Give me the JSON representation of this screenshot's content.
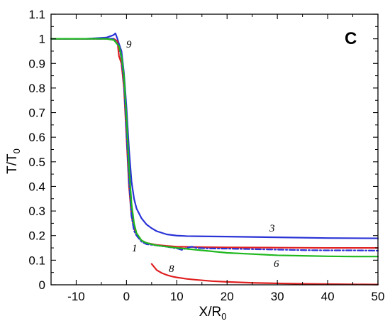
{
  "chart_data": {
    "type": "line",
    "panel_label": "C",
    "xlabel_main": "X/R",
    "xlabel_sub": "0",
    "ylabel_main": "T/T",
    "ylabel_sub": "0",
    "xlim": [
      -15,
      50
    ],
    "ylim": [
      0,
      1.1
    ],
    "xticks": [
      -10,
      0,
      10,
      20,
      30,
      40,
      50
    ],
    "yticks": [
      0,
      0.1,
      0.2,
      0.3,
      0.4,
      0.5,
      0.6,
      0.7,
      0.8,
      0.9,
      1,
      1.1
    ],
    "xtick_labels": [
      "-10",
      "0",
      "10",
      "20",
      "30",
      "40",
      "50"
    ],
    "ytick_labels": [
      "0",
      "0.1",
      "0.2",
      "0.3",
      "0.4",
      "0.5",
      "0.6",
      "0.7",
      "0.8",
      "0.9",
      "1",
      "1.1"
    ],
    "grid": false,
    "series": [
      {
        "name": "3",
        "color": "#2a33d6",
        "dash": "solid",
        "x": [
          -15,
          -8,
          -4,
          -2.6,
          -2.2,
          -1.8,
          -1.5,
          -1.0,
          -0.5,
          0,
          0.5,
          1,
          1.5,
          2,
          3,
          4,
          5,
          6,
          8,
          10,
          12,
          15,
          20,
          30,
          40,
          50
        ],
        "y": [
          1.0,
          1.0,
          1.005,
          1.015,
          1.022,
          1.0,
          0.98,
          0.95,
          0.86,
          0.72,
          0.55,
          0.42,
          0.35,
          0.31,
          0.27,
          0.245,
          0.23,
          0.218,
          0.205,
          0.2,
          0.198,
          0.197,
          0.196,
          0.193,
          0.19,
          0.189
        ]
      },
      {
        "name": "9",
        "color": "#e02020",
        "dash": "solid",
        "x": [
          -15,
          -8,
          -4,
          -2.5,
          -1.8,
          -1.6,
          -1.5,
          -1.0,
          -0.5,
          0,
          0.5,
          1,
          1.5,
          2,
          3,
          4,
          6,
          8,
          10,
          15,
          20,
          30,
          40,
          50
        ],
        "y": [
          1.0,
          1.0,
          1.0,
          1.0,
          0.99,
          0.95,
          0.93,
          0.9,
          0.8,
          0.6,
          0.4,
          0.28,
          0.23,
          0.205,
          0.18,
          0.17,
          0.162,
          0.158,
          0.155,
          0.153,
          0.152,
          0.151,
          0.15,
          0.15
        ]
      },
      {
        "name": "1",
        "color": "#2a33d6",
        "dash": "dashdot",
        "x": [
          -15,
          -8,
          -4,
          -2.5,
          -1.5,
          -1.0,
          -0.5,
          0,
          0.5,
          1,
          1.5,
          2,
          3,
          4,
          6,
          8,
          10,
          11,
          12,
          13,
          14,
          16,
          20,
          25,
          30,
          35,
          40,
          45,
          50
        ],
        "y": [
          1.0,
          1.0,
          1.0,
          1.0,
          0.97,
          0.92,
          0.82,
          0.62,
          0.42,
          0.28,
          0.22,
          0.2,
          0.175,
          0.165,
          0.16,
          0.155,
          0.148,
          0.142,
          0.15,
          0.155,
          0.15,
          0.148,
          0.147,
          0.145,
          0.143,
          0.141,
          0.14,
          0.14,
          0.139
        ]
      },
      {
        "name": "6",
        "color": "#1fb81f",
        "dash": "solid",
        "x": [
          -15,
          -8,
          -4,
          -2.5,
          -1.5,
          -1.0,
          -0.5,
          0,
          0.5,
          1,
          1.5,
          2,
          3,
          4,
          6,
          8,
          10,
          15,
          20,
          25,
          30,
          35,
          40,
          45,
          50
        ],
        "y": [
          1.0,
          1.0,
          1.0,
          0.995,
          0.97,
          0.93,
          0.85,
          0.68,
          0.48,
          0.33,
          0.25,
          0.21,
          0.18,
          0.17,
          0.16,
          0.155,
          0.15,
          0.14,
          0.13,
          0.125,
          0.12,
          0.118,
          0.116,
          0.115,
          0.115
        ]
      },
      {
        "name": "8",
        "color": "#e02020",
        "dash": "solid",
        "x": [
          5,
          6,
          7,
          8,
          9,
          10,
          12,
          14,
          17,
          20,
          25,
          30,
          35,
          40,
          45,
          50
        ],
        "y": [
          0.085,
          0.06,
          0.048,
          0.04,
          0.034,
          0.03,
          0.024,
          0.02,
          0.015,
          0.012,
          0.008,
          0.006,
          0.004,
          0.003,
          0.002,
          0.001
        ]
      }
    ]
  }
}
